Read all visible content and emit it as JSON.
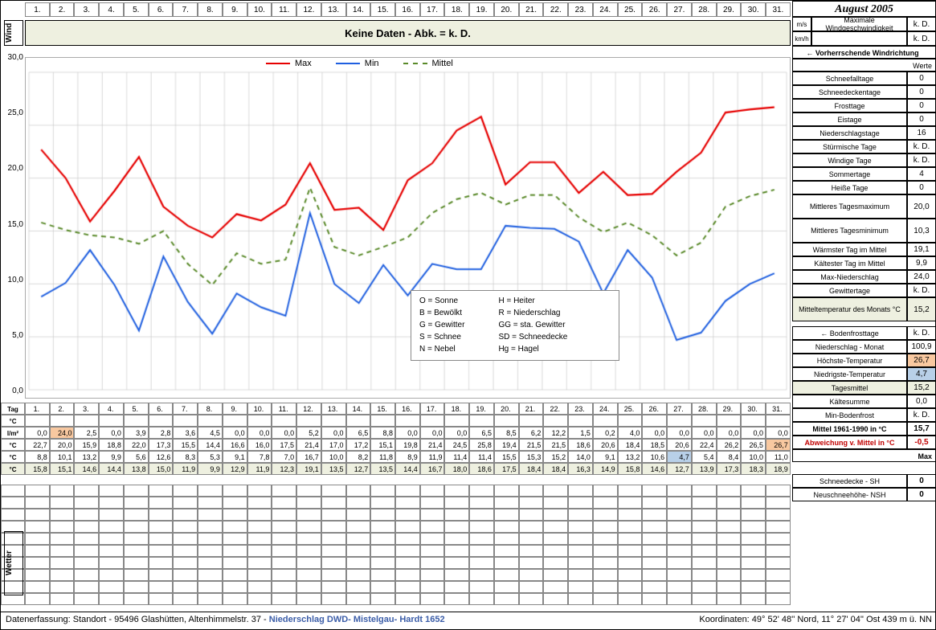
{
  "title": "August 2005",
  "wind_strip_text": "Keine Daten - Abk. = k. D.",
  "days": [
    "1.",
    "2.",
    "3.",
    "4.",
    "5.",
    "6.",
    "7.",
    "8.",
    "9.",
    "10.",
    "11.",
    "12.",
    "13.",
    "14.",
    "15.",
    "16.",
    "17.",
    "18.",
    "19.",
    "20.",
    "21.",
    "22.",
    "23.",
    "24.",
    "25.",
    "26.",
    "27.",
    "28.",
    "29.",
    "30.",
    "31."
  ],
  "chart": {
    "type": "line",
    "ylim": [
      0,
      30
    ],
    "ytick_step": 5,
    "background_color": "#ffffff",
    "grid_color": "#cccccc",
    "series": {
      "max": {
        "label": "Max",
        "color": "#e60000",
        "dash": [],
        "width": 2.2,
        "values": [
          22.7,
          20.0,
          15.9,
          18.8,
          22.0,
          17.3,
          15.5,
          14.4,
          16.6,
          16.0,
          17.5,
          21.4,
          17.0,
          17.2,
          15.1,
          19.8,
          21.4,
          24.5,
          25.8,
          19.4,
          21.5,
          21.5,
          18.6,
          20.6,
          18.4,
          18.5,
          20.6,
          22.4,
          26.2,
          26.5,
          26.7
        ]
      },
      "min": {
        "label": "Min",
        "color": "#1f5fe0",
        "dash": [],
        "width": 2.0,
        "values": [
          8.8,
          10.1,
          13.2,
          9.9,
          5.6,
          12.6,
          8.3,
          5.3,
          9.1,
          7.8,
          7.0,
          16.7,
          10.0,
          8.2,
          11.8,
          8.9,
          11.9,
          11.4,
          11.4,
          15.5,
          15.3,
          15.2,
          14.0,
          9.1,
          13.2,
          10.6,
          4.7,
          5.4,
          8.4,
          10.0,
          11.0
        ]
      },
      "mittel": {
        "label": "Mittel",
        "color": "#5a8a2a",
        "dash": [
          6,
          5
        ],
        "width": 2.0,
        "values": [
          15.8,
          15.1,
          14.6,
          14.4,
          13.8,
          15.0,
          11.9,
          9.9,
          12.9,
          11.9,
          12.3,
          19.1,
          13.5,
          12.7,
          13.5,
          14.4,
          16.7,
          18.0,
          18.6,
          17.5,
          18.4,
          18.4,
          16.3,
          14.9,
          15.8,
          14.6,
          12.7,
          13.9,
          17.3,
          18.3,
          18.9
        ]
      }
    }
  },
  "code_legend": [
    [
      "O = Sonne",
      "H = Heiter"
    ],
    [
      "B = Bewölkt",
      "R = Niederschlag"
    ],
    [
      "G = Gewitter",
      "GG = sta. Gewitter"
    ],
    [
      "S = Schnee",
      "SD = Schneedecke"
    ],
    [
      "N = Nebel",
      "Hg = Hagel"
    ]
  ],
  "data_rows": {
    "tag": {
      "label": "Tag",
      "unit": "",
      "highlight": null,
      "values": [
        "1.",
        "2.",
        "3.",
        "4.",
        "5.",
        "6.",
        "7.",
        "8.",
        "9.",
        "10.",
        "11.",
        "12.",
        "13.",
        "14.",
        "15.",
        "16.",
        "17.",
        "18.",
        "19.",
        "20.",
        "21.",
        "22.",
        "23.",
        "24.",
        "25.",
        "26.",
        "27.",
        "28.",
        "29.",
        "30.",
        "31."
      ]
    },
    "celsius_blank": {
      "label": "°C",
      "unit": "",
      "values": [
        "",
        "",
        "",
        "",
        "",
        "",
        "",
        "",
        "",
        "",
        "",
        "",
        "",
        "",
        "",
        "",
        "",
        "",
        "",
        "",
        "",
        "",
        "",
        "",
        "",
        "",
        "",
        "",
        "",
        "",
        ""
      ]
    },
    "niederschlag": {
      "label": "l/m²",
      "values": [
        "0,0",
        "24,0",
        "2,5",
        "0,0",
        "3,9",
        "2,8",
        "3,6",
        "4,5",
        "0,0",
        "0,0",
        "0,0",
        "5,2",
        "0,0",
        "6,5",
        "8,8",
        "0,0",
        "0,0",
        "0,0",
        "6,5",
        "8,5",
        "6,2",
        "12,2",
        "1,5",
        "0,2",
        "4,0",
        "0,0",
        "0,0",
        "0,0",
        "0,0",
        "0,0",
        "0,0"
      ],
      "highlight_cells": {
        "1": "#f8c8a0"
      }
    },
    "max": {
      "label": "°C",
      "values": [
        "22,7",
        "20,0",
        "15,9",
        "18,8",
        "22,0",
        "17,3",
        "15,5",
        "14,4",
        "16,6",
        "16,0",
        "17,5",
        "21,4",
        "17,0",
        "17,2",
        "15,1",
        "19,8",
        "21,4",
        "24,5",
        "25,8",
        "19,4",
        "21,5",
        "21,5",
        "18,6",
        "20,6",
        "18,4",
        "18,5",
        "20,6",
        "22,4",
        "26,2",
        "26,5",
        "26,7"
      ],
      "highlight_cells": {
        "30": "#f8c8a0"
      }
    },
    "min": {
      "label": "°C",
      "values": [
        "8,8",
        "10,1",
        "13,2",
        "9,9",
        "5,6",
        "12,6",
        "8,3",
        "5,3",
        "9,1",
        "7,8",
        "7,0",
        "16,7",
        "10,0",
        "8,2",
        "11,8",
        "8,9",
        "11,9",
        "11,4",
        "11,4",
        "15,5",
        "15,3",
        "15,2",
        "14,0",
        "9,1",
        "13,2",
        "10,6",
        "4,7",
        "5,4",
        "8,4",
        "10,0",
        "11,0"
      ],
      "highlight_cells": {
        "26": "#b8d0e8"
      }
    },
    "tagesmittel": {
      "label": "°C",
      "bg": "#eef0e0",
      "values": [
        "15,8",
        "15,1",
        "14,6",
        "14,4",
        "13,8",
        "15,0",
        "11,9",
        "9,9",
        "12,9",
        "11,9",
        "12,3",
        "19,1",
        "13,5",
        "12,7",
        "13,5",
        "14,4",
        "16,7",
        "18,0",
        "18,6",
        "17,5",
        "18,4",
        "18,4",
        "16,3",
        "14,9",
        "15,8",
        "14,6",
        "12,7",
        "13,9",
        "17,3",
        "18,3",
        "18,9"
      ]
    }
  },
  "right_panel": {
    "wind_max": {
      "label": "Maximale Windgeschwindigkeit",
      "ms": "k. D.",
      "kmh": "k. D."
    },
    "wind_dir_heading": "← Vorherrschende Windrichtung",
    "werte_heading": "Werte",
    "stats": [
      {
        "label": "Schneefalltage",
        "val": "0"
      },
      {
        "label": "Schneedeckentage",
        "val": "0"
      },
      {
        "label": "Frosttage",
        "val": "0"
      },
      {
        "label": "Eistage",
        "val": "0"
      },
      {
        "label": "Niederschlagstage",
        "val": "16"
      },
      {
        "label": "Stürmische Tage",
        "val": "k. D."
      },
      {
        "label": "Windige Tage",
        "val": "k. D."
      },
      {
        "label": "Sommertage",
        "val": "4"
      },
      {
        "label": "Heiße Tage",
        "val": "0"
      }
    ],
    "mittleres_max": {
      "label": "Mittleres Tagesmaximum",
      "val": "20,0"
    },
    "mittleres_min": {
      "label": "Mittleres Tagesminimum",
      "val": "10,3"
    },
    "warmster": {
      "label": "Wärmster Tag im Mittel",
      "val": "19,1"
    },
    "kaltester": {
      "label": "Kältester Tag im Mittel",
      "val": "9,9"
    },
    "max_nieder": {
      "label": "Max-Niederschlag",
      "val": "24,0"
    },
    "gewittertage": {
      "label": "Gewittertage",
      "val": "k. D."
    },
    "mitteltemp": {
      "label": "Mitteltemperatur des Monats °C",
      "val": "15,2"
    },
    "bodenfrost_heading": "← Bodenfrosttage",
    "bodenfrost_val": "k. D.",
    "nieder_monat": {
      "label": "Niederschlag - Monat",
      "val": "100,9"
    },
    "hoechste": {
      "label": "Höchste-Temperatur",
      "val": "26,7"
    },
    "niedrigste": {
      "label": "Niedrigste-Temperatur",
      "val": "4,7"
    },
    "tagesmittel": {
      "label": "Tagesmittel",
      "val": "15,2"
    },
    "kaltesumme": {
      "label": "Kältesumme",
      "val": "0,0"
    },
    "minbodenfrost": {
      "label": "Min-Bodenfrost",
      "val": "k. D."
    },
    "mittel6190": {
      "label": "Mittel 1961-1990 in °C",
      "val": "15,7"
    },
    "abweichung": {
      "label": "Abweichung v. Mittel in °C",
      "val": "-0,5"
    },
    "max_heading": "Max",
    "schneedecke": {
      "label": "Schneedecke  -  SH",
      "val": "0"
    },
    "neuschnee": {
      "label": "Neuschneehöhe- NSH",
      "val": "0"
    }
  },
  "footer": {
    "left_prefix": "Datenerfassung:  Standort  -  95496  Glashütten, Altenhimmelstr. 37 - ",
    "source": "Niederschlag DWD- Mistelgau- Hardt 1652",
    "right": "Koordinaten:  49° 52' 48'' Nord,   11° 27' 04'' Ost    439 m ü. NN"
  },
  "labels": {
    "wind": "Wind",
    "wetter": "Wetter",
    "ms": "m/s",
    "kmh": "km/h"
  }
}
